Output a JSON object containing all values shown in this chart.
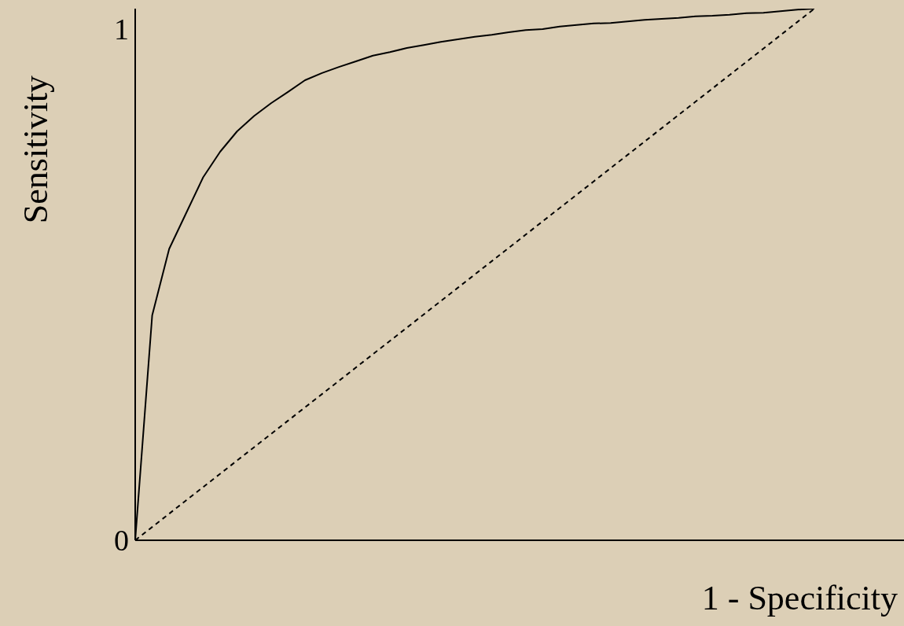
{
  "chart_data": {
    "type": "line",
    "xlabel": "1 - Specificity",
    "ylabel": "Sensitivity",
    "tick_labels": "y",
    "categories": [
      null,
      null,
      null,
      null,
      null,
      null,
      null,
      null,
      null,
      null,
      null,
      null,
      null,
      null,
      null,
      null,
      null,
      null,
      null,
      null,
      null,
      null,
      null,
      null,
      null,
      null,
      null,
      null,
      null,
      null,
      null,
      null,
      null,
      null,
      null,
      null,
      null,
      null,
      null,
      null,
      null
    ],
    "series": [
      {
        "color": "#000000",
        "line_style": "solid",
        "values": [
          0,
          0.44,
          0.57,
          0.64,
          0.71,
          0.76,
          0.8,
          0.83,
          0.855,
          0.877,
          0.9,
          0.914,
          0.926,
          0.937,
          0.948,
          0.955,
          0.963,
          0.969,
          0.975,
          0.98,
          0.985,
          0.989,
          0.994,
          0.998,
          1.0,
          1.005,
          1.008,
          1.011,
          1.012,
          1.015,
          1.018,
          1.02,
          1.022,
          1.025,
          1.026,
          1.028,
          1.031,
          1.032,
          1.035,
          1.038,
          1.04
        ]
      },
      {
        "color": "#000000",
        "line_style": "dashed",
        "values": [
          0,
          0.026,
          0.052,
          0.078,
          0.104,
          0.13,
          0.156,
          0.182,
          0.208,
          0.234,
          0.26,
          0.286,
          0.312,
          0.338,
          0.364,
          0.39,
          0.416,
          0.442,
          0.468,
          0.494,
          0.52,
          0.546,
          0.572,
          0.598,
          0.624,
          0.65,
          0.676,
          0.702,
          0.728,
          0.754,
          0.78,
          0.806,
          0.832,
          0.858,
          0.884,
          0.91,
          0.936,
          0.962,
          0.988,
          1.014,
          1.04
        ]
      }
    ],
    "ylim": [
      0,
      1.04
    ],
    "yticks": [
      0,
      1
    ]
  }
}
